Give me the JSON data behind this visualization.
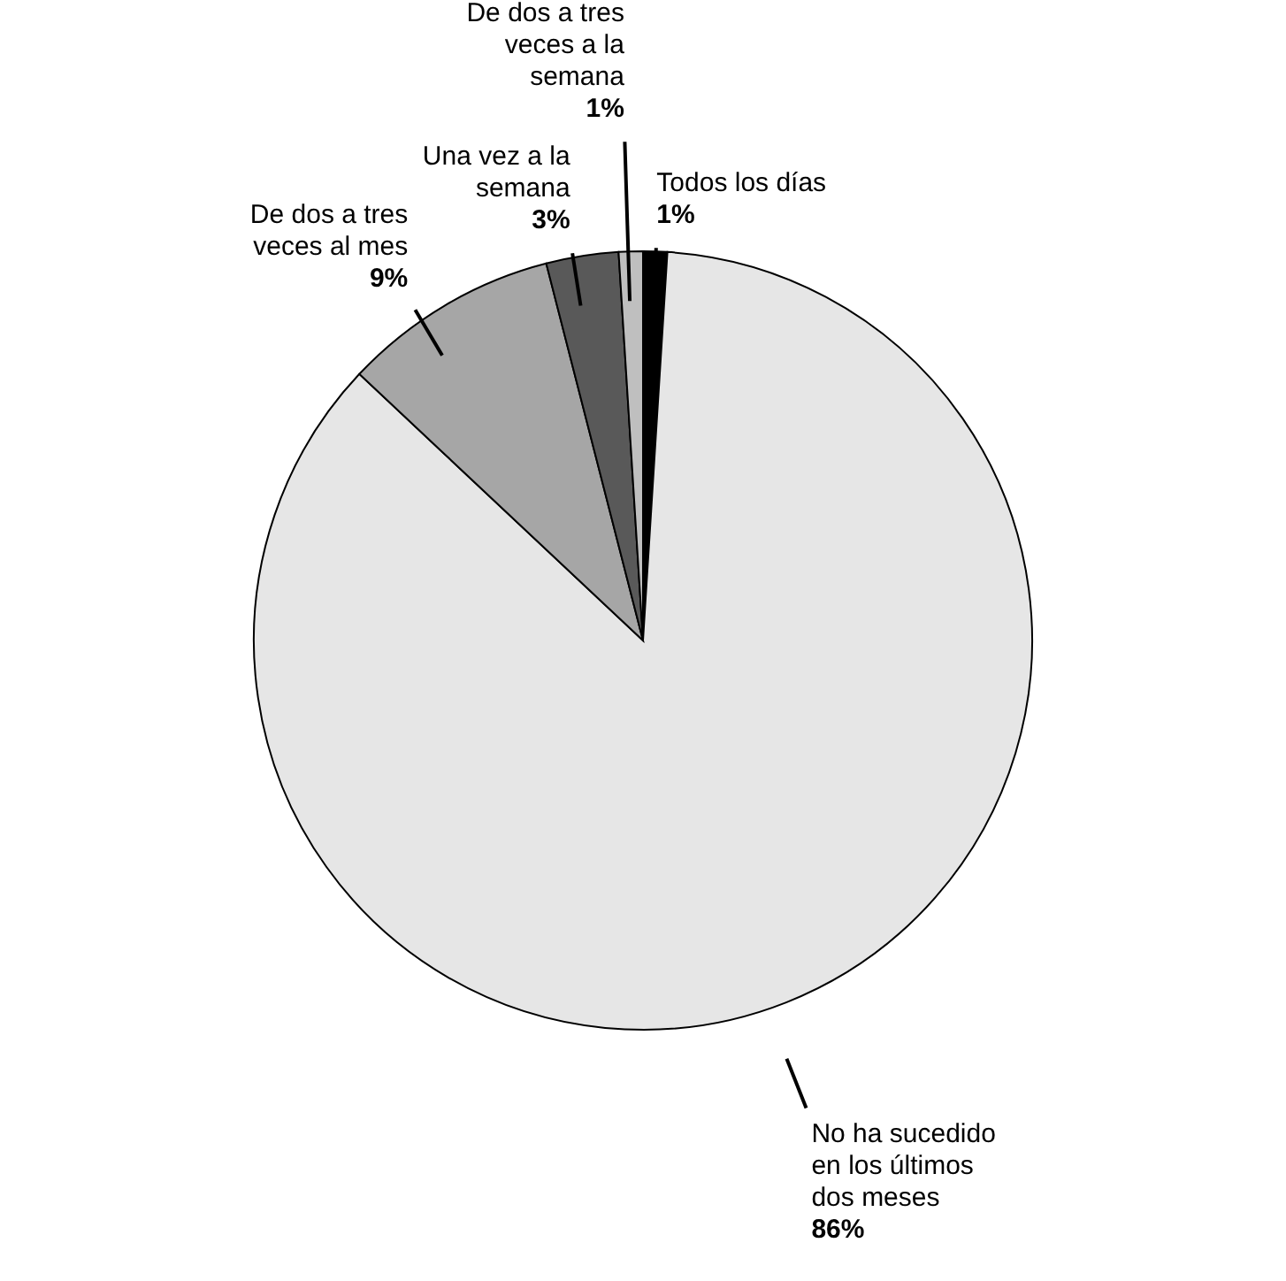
{
  "chart_data": {
    "type": "pie",
    "categories": [
      "Todos los días",
      "No ha sucedido en los últimos dos meses",
      "De dos a tres veces al mes",
      "Una vez a la semana",
      "De dos a tres veces a la semana"
    ],
    "values": [
      1,
      86,
      9,
      3,
      1
    ],
    "colors": [
      "#000000",
      "#e6e6e6",
      "#a6a6a6",
      "#595959",
      "#bfbfbf"
    ],
    "value_labels": [
      "1%",
      "86%",
      "9%",
      "3%",
      "1%"
    ]
  }
}
